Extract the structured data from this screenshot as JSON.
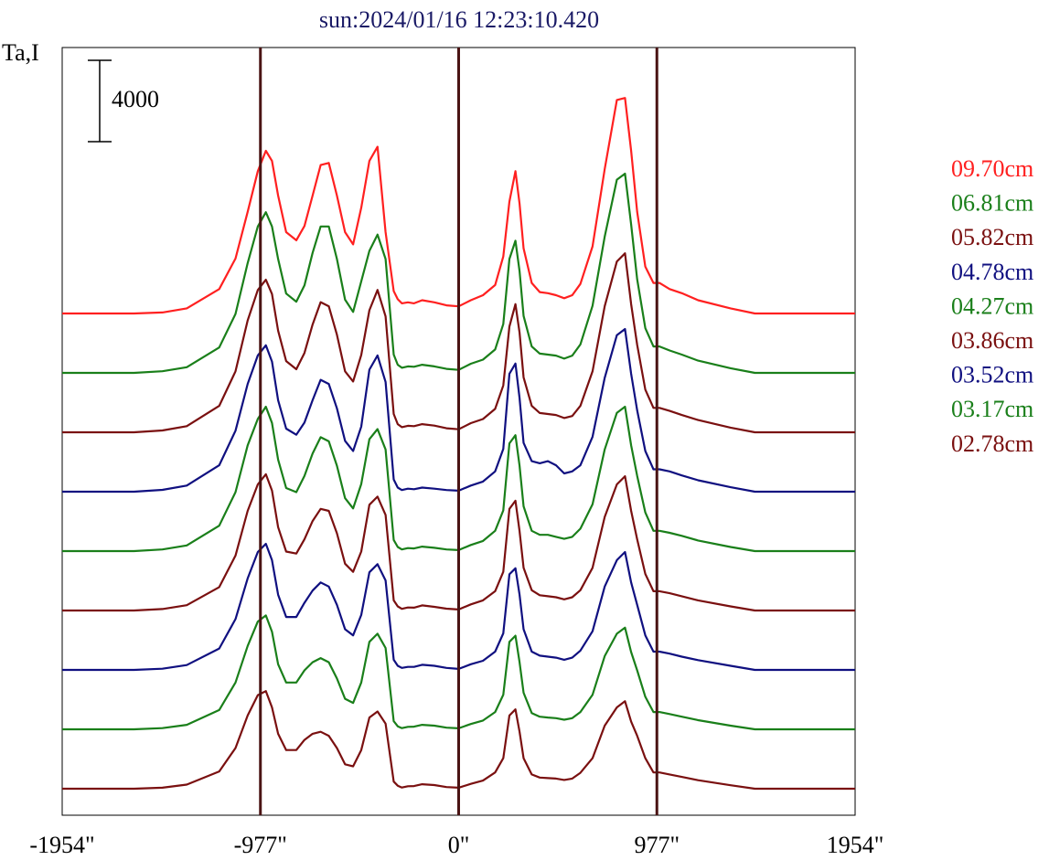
{
  "chart_data": {
    "type": "line",
    "title": "sun:2024/01/16 12:23:10.420",
    "ylabel": "Ta,I",
    "scale_bar_label": "4000",
    "scale_bar_value": 4000,
    "xlim": [
      -1954,
      1954
    ],
    "x_ticks": [
      {
        "value": -1954,
        "label": "-1954\""
      },
      {
        "value": -977,
        "label": "-977\""
      },
      {
        "value": 0,
        "label": "0\""
      },
      {
        "value": 977,
        "label": "977\""
      },
      {
        "value": 1954,
        "label": "1954\""
      }
    ],
    "vlines": [
      -977,
      0,
      977
    ],
    "legend_position": "right",
    "x": [
      -1954,
      -1720,
      -1600,
      -1460,
      -1340,
      -1180,
      -1100,
      -1040,
      -990,
      -950,
      -920,
      -890,
      -850,
      -800,
      -760,
      -720,
      -680,
      -640,
      -600,
      -560,
      -520,
      -480,
      -440,
      -400,
      -360,
      -320,
      -300,
      -280,
      -250,
      -220,
      -180,
      -120,
      -60,
      0,
      60,
      120,
      180,
      220,
      250,
      280,
      300,
      320,
      360,
      400,
      440,
      480,
      520,
      560,
      600,
      660,
      720,
      780,
      820,
      850,
      880,
      920,
      960,
      990,
      1040,
      1100,
      1180,
      1340,
      1460,
      1600,
      1720,
      1954
    ],
    "series": [
      {
        "name": "09.70cm",
        "color": "#ff2020",
        "offset": 0,
        "values": [
          0,
          0,
          0,
          50,
          250,
          1200,
          2700,
          5000,
          7000,
          8000,
          7500,
          5800,
          4000,
          3600,
          4300,
          5800,
          7300,
          7400,
          5800,
          4000,
          3400,
          5200,
          7500,
          8200,
          4000,
          1100,
          700,
          500,
          550,
          500,
          650,
          550,
          400,
          350,
          650,
          900,
          1400,
          2800,
          5500,
          7000,
          5400,
          3200,
          1500,
          1050,
          1000,
          900,
          750,
          900,
          1450,
          3300,
          7100,
          10500,
          10600,
          8000,
          5000,
          2300,
          1500,
          1500,
          1200,
          1000,
          650,
          250,
          0,
          0,
          0,
          0
        ]
      },
      {
        "name": "06.81cm",
        "color": "#1a7f1a",
        "offset": 1,
        "values": [
          0,
          0,
          0,
          80,
          280,
          1250,
          2900,
          5400,
          7200,
          7900,
          7200,
          5600,
          3900,
          3500,
          4300,
          5900,
          7200,
          7200,
          5600,
          3600,
          3000,
          4500,
          6000,
          6800,
          5600,
          900,
          400,
          250,
          320,
          300,
          400,
          320,
          200,
          150,
          450,
          650,
          1150,
          2400,
          5600,
          6500,
          5000,
          2800,
          1300,
          950,
          900,
          850,
          700,
          850,
          1400,
          3300,
          6700,
          9500,
          9800,
          7300,
          4600,
          2200,
          1300,
          1300,
          1100,
          900,
          600,
          230,
          0,
          0,
          0,
          0
        ]
      },
      {
        "name": "05.82cm",
        "color": "#7a1010",
        "offset": 2,
        "values": [
          0,
          0,
          0,
          90,
          300,
          1300,
          3000,
          5500,
          7000,
          7500,
          6800,
          5000,
          3500,
          3100,
          3900,
          5300,
          6400,
          6200,
          4800,
          3000,
          2500,
          3800,
          6000,
          7000,
          5700,
          900,
          400,
          250,
          320,
          300,
          400,
          330,
          200,
          150,
          450,
          650,
          1150,
          2300,
          5200,
          6300,
          4900,
          2700,
          1300,
          950,
          900,
          850,
          700,
          800,
          1300,
          3000,
          6200,
          8400,
          8800,
          6300,
          4300,
          2100,
          1200,
          1200,
          1050,
          850,
          600,
          230,
          0,
          0,
          0,
          0
        ]
      },
      {
        "name": "04.78cm",
        "color": "#101080",
        "offset": 3,
        "values": [
          0,
          0,
          0,
          90,
          300,
          1300,
          3000,
          5300,
          6700,
          7200,
          6400,
          4500,
          3100,
          2800,
          3400,
          4500,
          5500,
          5300,
          4100,
          2500,
          2000,
          3200,
          6000,
          6700,
          5400,
          600,
          200,
          80,
          150,
          120,
          200,
          150,
          80,
          50,
          300,
          500,
          1000,
          2100,
          5800,
          6300,
          4600,
          2400,
          1500,
          1400,
          1500,
          1300,
          900,
          1000,
          1300,
          2700,
          5600,
          7700,
          8000,
          5800,
          4000,
          2000,
          1100,
          1100,
          1000,
          800,
          560,
          220,
          0,
          0,
          0,
          0
        ]
      },
      {
        "name": "04.27cm",
        "color": "#1a7f1a",
        "offset": 4,
        "values": [
          0,
          0,
          0,
          80,
          280,
          1250,
          2900,
          5200,
          6500,
          7100,
          6300,
          4500,
          3100,
          2900,
          3700,
          4800,
          5600,
          5400,
          4200,
          2600,
          2100,
          3300,
          5500,
          6000,
          5000,
          550,
          200,
          80,
          150,
          130,
          220,
          160,
          80,
          50,
          300,
          500,
          1000,
          2000,
          5300,
          5700,
          4200,
          2200,
          1000,
          800,
          800,
          700,
          600,
          700,
          1100,
          2300,
          5000,
          6800,
          7100,
          5200,
          3700,
          1900,
          1000,
          1000,
          900,
          750,
          520,
          200,
          0,
          0,
          0,
          0
        ]
      },
      {
        "name": "03.86cm",
        "color": "#7a1010",
        "offset": 5,
        "values": [
          0,
          0,
          0,
          70,
          260,
          1150,
          2700,
          4900,
          6200,
          6700,
          5900,
          4100,
          2900,
          2800,
          3500,
          4400,
          5000,
          4900,
          3800,
          2300,
          1900,
          2900,
          5200,
          5600,
          4700,
          500,
          200,
          80,
          150,
          140,
          250,
          180,
          90,
          50,
          300,
          500,
          950,
          1900,
          5000,
          5400,
          3900,
          2100,
          1000,
          750,
          700,
          650,
          550,
          650,
          1000,
          2100,
          4600,
          6200,
          6600,
          4900,
          3500,
          1800,
          950,
          950,
          850,
          700,
          500,
          200,
          0,
          0,
          0,
          0
        ]
      },
      {
        "name": "03.52cm",
        "color": "#101080",
        "offset": 6,
        "values": [
          0,
          0,
          0,
          60,
          240,
          1050,
          2500,
          4500,
          5800,
          6200,
          5400,
          3700,
          2600,
          2600,
          3300,
          3900,
          4300,
          4100,
          3200,
          2000,
          1700,
          2700,
          4800,
          5200,
          4400,
          500,
          200,
          100,
          150,
          150,
          250,
          200,
          100,
          50,
          280,
          450,
          900,
          1800,
          4700,
          5000,
          3700,
          2000,
          900,
          700,
          650,
          600,
          500,
          600,
          950,
          1900,
          4100,
          5400,
          5800,
          4300,
          3200,
          1700,
          900,
          900,
          800,
          650,
          480,
          200,
          0,
          0,
          0,
          0
        ]
      },
      {
        "name": "03.17cm",
        "color": "#1a7f1a",
        "offset": 7,
        "values": [
          0,
          0,
          0,
          60,
          220,
          950,
          2300,
          4100,
          5300,
          5600,
          4800,
          3200,
          2300,
          2300,
          2900,
          3300,
          3500,
          3300,
          2500,
          1500,
          1300,
          2300,
          4300,
          4700,
          4000,
          400,
          150,
          60,
          120,
          130,
          220,
          180,
          80,
          50,
          260,
          430,
          850,
          1700,
          4300,
          4600,
          3300,
          1800,
          800,
          620,
          580,
          550,
          470,
          550,
          850,
          1700,
          3600,
          4700,
          5000,
          3800,
          2900,
          1600,
          850,
          850,
          750,
          620,
          450,
          180,
          0,
          0,
          0,
          0
        ]
      },
      {
        "name": "02.78cm",
        "color": "#7a1010",
        "offset": 8,
        "values": [
          0,
          0,
          0,
          50,
          200,
          850,
          2000,
          3600,
          4600,
          4800,
          4000,
          2700,
          1900,
          1900,
          2400,
          2700,
          2800,
          2600,
          2000,
          1200,
          1100,
          1900,
          3500,
          3800,
          3200,
          350,
          150,
          60,
          120,
          130,
          220,
          180,
          80,
          50,
          240,
          400,
          800,
          1500,
          3600,
          3900,
          2800,
          1500,
          700,
          550,
          520,
          500,
          430,
          500,
          780,
          1500,
          3100,
          4000,
          4300,
          3300,
          2600,
          1500,
          800,
          800,
          700,
          580,
          420,
          170,
          0,
          0,
          0,
          0
        ]
      }
    ]
  }
}
